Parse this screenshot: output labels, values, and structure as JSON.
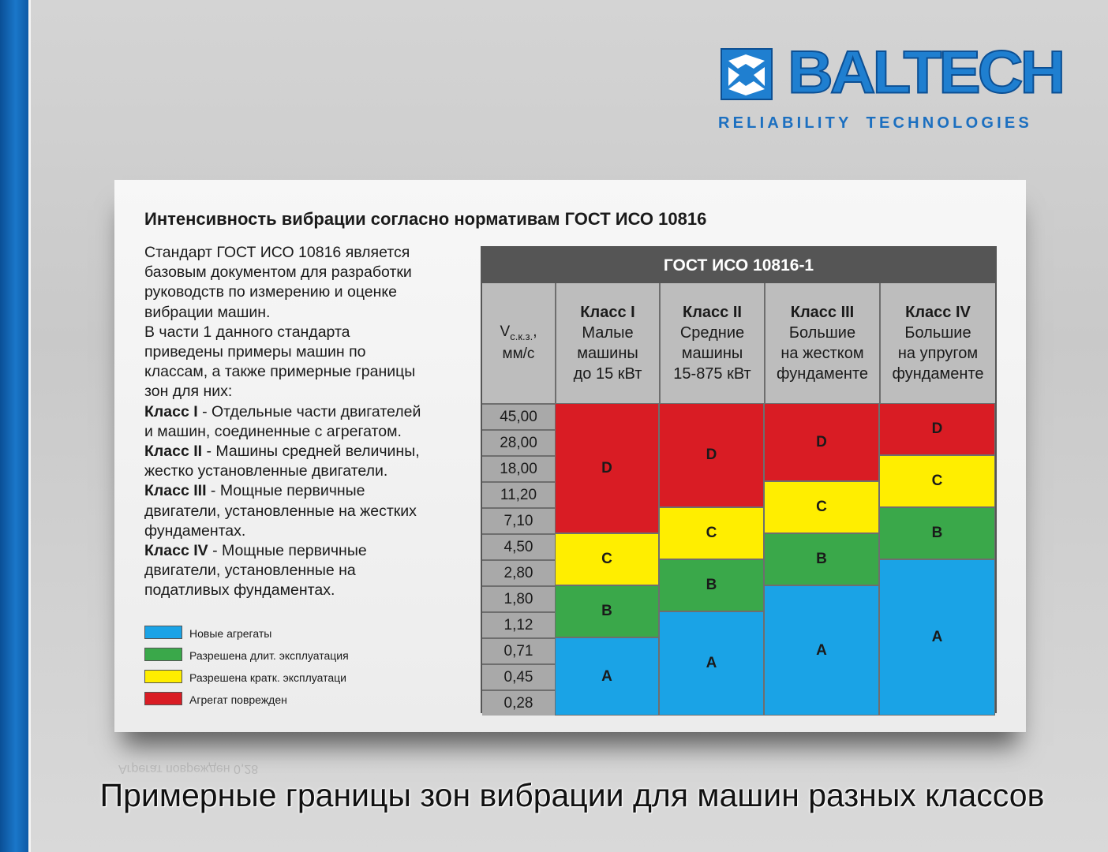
{
  "logo": {
    "brand": "BALTECH",
    "tagline_left": "RELIABILITY",
    "tagline_right": "TECHNOLOGIES",
    "brand_color": "#1f7fd0"
  },
  "card": {
    "title": "Интенсивность вибрации согласно нормативам ГОСТ ИСО 10816",
    "description": [
      "Стандарт ГОСТ ИСО 10816 является",
      "базовым документом для разработки",
      "руководств по измерению и оценке",
      "вибрации машин.",
      "В части 1 данного стандарта",
      "приведены примеры машин по",
      "классам, а также примерные границы",
      "зон для них:"
    ],
    "class_notes": [
      {
        "label": "Класс I",
        "text": " - Отдельные части двигателей",
        "cont": "и машин, соединенные с агрегатом."
      },
      {
        "label": "Класс II",
        "text": " - Машины средней величины,",
        "cont": "жестко установленные двигатели."
      },
      {
        "label": "Класс III",
        "text": " - Мощные первичные",
        "cont": "двигатели, установленные на жестких",
        "cont2": "фундаментах."
      },
      {
        "label": "Класс IV",
        "text": " - Мощные первичные",
        "cont": "двигатели, установленные на",
        "cont2": "податливых фундаментах."
      }
    ]
  },
  "legend": [
    {
      "zone": "A",
      "label": "Новые агрегаты",
      "color": "#1aa3e6"
    },
    {
      "zone": "B",
      "label": "Разрешена длит. эксплуатация",
      "color": "#3aa84a"
    },
    {
      "zone": "C",
      "label": "Разрешена кратк. эксплуатаци",
      "color": "#ffee00"
    },
    {
      "zone": "D",
      "label": "Агрегат поврежден",
      "color": "#d91c24"
    }
  ],
  "table": {
    "header": "ГОСТ ИСО 10816-1",
    "v_label": "V",
    "v_sub": "с.к.з.",
    "v_comma": ",",
    "v_unit": "мм/с",
    "columns": [
      {
        "cls": "Класс I",
        "l1": "Малые",
        "l2": "машины",
        "l3": "до 15 кВт"
      },
      {
        "cls": "Класс II",
        "l1": "Средние",
        "l2": "машины",
        "l3": "15-875 кВт"
      },
      {
        "cls": "Класс III",
        "l1": "Большие",
        "l2": "на жестком",
        "l3": "фундаменте"
      },
      {
        "cls": "Класс IV",
        "l1": "Большие",
        "l2": "на упругом",
        "l3": "фундаменте"
      }
    ],
    "velocities": [
      "45,00",
      "28,00",
      "18,00",
      "11,20",
      "7,10",
      "4,50",
      "2,80",
      "1,80",
      "1,12",
      "0,71",
      "0,45",
      "0,28"
    ]
  },
  "chart_data": {
    "type": "table",
    "title": "ГОСТ ИСО 10816-1",
    "row_values_mm_s": [
      45.0,
      28.0,
      18.0,
      11.2,
      7.1,
      4.5,
      2.8,
      1.8,
      1.12,
      0.71,
      0.45,
      0.28
    ],
    "zones_by_class": [
      {
        "class": "Класс I",
        "zones": [
          {
            "zone": "D",
            "rows": 5
          },
          {
            "zone": "C",
            "rows": 2
          },
          {
            "zone": "B",
            "rows": 2
          },
          {
            "zone": "A",
            "rows": 3
          }
        ]
      },
      {
        "class": "Класс II",
        "zones": [
          {
            "zone": "D",
            "rows": 4
          },
          {
            "zone": "C",
            "rows": 2
          },
          {
            "zone": "B",
            "rows": 2
          },
          {
            "zone": "A",
            "rows": 4
          }
        ]
      },
      {
        "class": "Класс III",
        "zones": [
          {
            "zone": "D",
            "rows": 3
          },
          {
            "zone": "C",
            "rows": 2
          },
          {
            "zone": "B",
            "rows": 2
          },
          {
            "zone": "A",
            "rows": 5
          }
        ]
      },
      {
        "class": "Класс IV",
        "zones": [
          {
            "zone": "D",
            "rows": 2
          },
          {
            "zone": "C",
            "rows": 2
          },
          {
            "zone": "B",
            "rows": 2
          },
          {
            "zone": "A",
            "rows": 6
          }
        ]
      }
    ]
  },
  "reflection_text": "Агрегат поврежден        0,28",
  "caption": "Примерные границы зон вибрации для машин разных классов"
}
